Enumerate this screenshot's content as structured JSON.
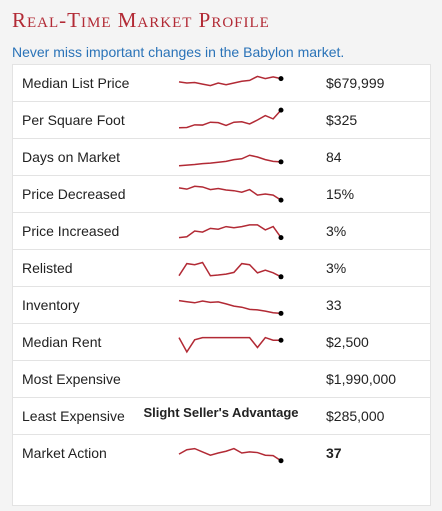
{
  "header": {
    "title": "Real-Time Market Profile",
    "subtitle": "Never miss important changes in the Babylon market."
  },
  "colors": {
    "title": "#b22a35",
    "subtitle": "#2a73b8",
    "sparkline": "#b22a35"
  },
  "rows": [
    {
      "label": "Median List Price",
      "value": "$679,999",
      "trend": [
        0.45,
        0.5,
        0.48,
        0.55,
        0.62,
        0.5,
        0.58,
        0.5,
        0.42,
        0.38,
        0.2,
        0.3,
        0.22,
        0.3
      ],
      "bold": false
    },
    {
      "label": "Per Square Foot",
      "value": "$325",
      "trend": [
        0.85,
        0.84,
        0.72,
        0.73,
        0.6,
        0.62,
        0.75,
        0.6,
        0.58,
        0.68,
        0.5,
        0.3,
        0.45,
        0.05
      ],
      "bold": false
    },
    {
      "label": "Days on Market",
      "value": "84",
      "trend": [
        0.9,
        0.87,
        0.84,
        0.8,
        0.78,
        0.74,
        0.7,
        0.62,
        0.58,
        0.42,
        0.5,
        0.62,
        0.7,
        0.72
      ],
      "bold": false
    },
    {
      "label": "Price Decreased",
      "value": "15%",
      "trend": [
        0.22,
        0.28,
        0.15,
        0.18,
        0.3,
        0.25,
        0.32,
        0.35,
        0.42,
        0.3,
        0.55,
        0.5,
        0.55,
        0.78
      ],
      "bold": false
    },
    {
      "label": "Price Increased",
      "value": "3%",
      "trend": [
        0.8,
        0.76,
        0.5,
        0.55,
        0.38,
        0.42,
        0.3,
        0.35,
        0.3,
        0.22,
        0.22,
        0.45,
        0.3,
        0.8
      ],
      "bold": false
    },
    {
      "label": "Relisted",
      "value": "3%",
      "trend": [
        0.85,
        0.3,
        0.35,
        0.25,
        0.85,
        0.82,
        0.78,
        0.7,
        0.3,
        0.35,
        0.72,
        0.6,
        0.72,
        0.9
      ],
      "bold": false
    },
    {
      "label": "Inventory",
      "value": "33",
      "trend": [
        0.3,
        0.35,
        0.4,
        0.32,
        0.38,
        0.36,
        0.45,
        0.55,
        0.6,
        0.7,
        0.72,
        0.78,
        0.85,
        0.88
      ],
      "bold": false
    },
    {
      "label": "Median Rent",
      "value": "$2,500",
      "trend": [
        0.3,
        0.95,
        0.4,
        0.3,
        0.3,
        0.3,
        0.3,
        0.3,
        0.3,
        0.3,
        0.75,
        0.3,
        0.42,
        0.42
      ],
      "bold": false
    },
    {
      "label": "Most Expensive",
      "value": "$1,990,000",
      "trend": null,
      "bold": false
    },
    {
      "label": "Least Expensive",
      "value": "$285,000",
      "trend": null,
      "bold": false
    },
    {
      "label": "Market Action",
      "value": "37",
      "trend": [
        0.55,
        0.35,
        0.3,
        0.45,
        0.6,
        0.5,
        0.42,
        0.3,
        0.5,
        0.45,
        0.48,
        0.6,
        0.62,
        0.85
      ],
      "bold": true
    }
  ],
  "footer": {
    "caption": "Slight Seller's Advantage"
  }
}
